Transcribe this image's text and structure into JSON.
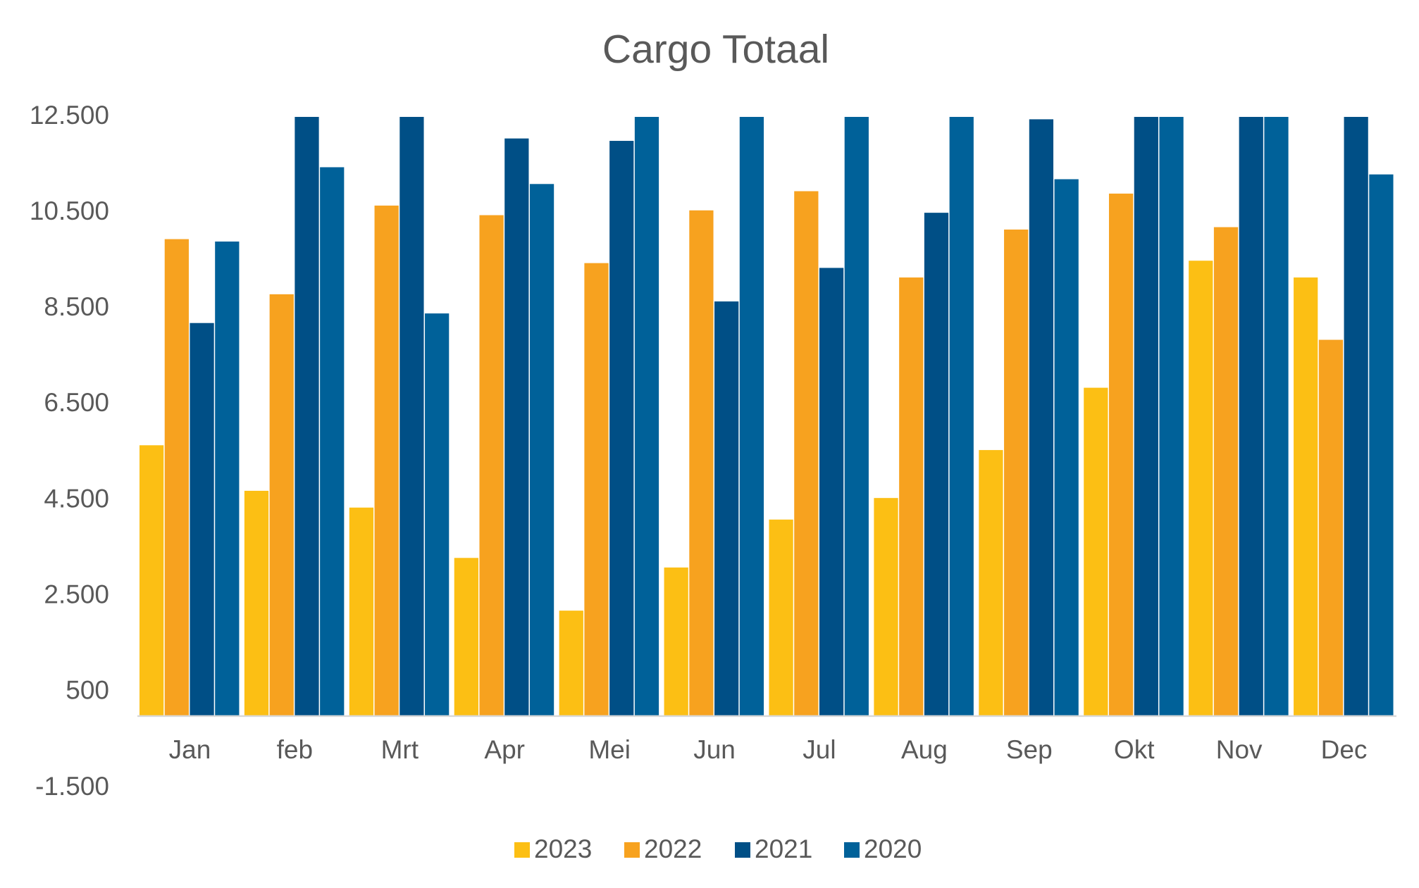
{
  "chart_data": {
    "type": "bar",
    "title": "Cargo Totaal",
    "categories": [
      "Jan",
      "feb",
      "Mrt",
      "Apr",
      "Mei",
      "Jun",
      "Jul",
      "Aug",
      "Sep",
      "Okt",
      "Nov",
      "Dec"
    ],
    "series": [
      {
        "name": "2023",
        "color": "#fcbf14",
        "values": [
          5650,
          4700,
          4350,
          3300,
          2200,
          3100,
          4100,
          4550,
          5550,
          6850,
          9500,
          9150
        ]
      },
      {
        "name": "2022",
        "color": "#f7a21f",
        "values": [
          9950,
          8800,
          10650,
          10450,
          9450,
          10550,
          10950,
          9150,
          10150,
          10900,
          10200,
          7850
        ]
      },
      {
        "name": "2021",
        "color": "#004f86",
        "values": [
          8200,
          12500,
          12500,
          12050,
          12000,
          8650,
          9350,
          10500,
          12450,
          12500,
          12500,
          12500
        ]
      },
      {
        "name": "2020",
        "color": "#006199",
        "values": [
          9900,
          11450,
          8400,
          11100,
          12500,
          12500,
          12500,
          12500,
          11200,
          12500,
          12500,
          11300
        ]
      }
    ],
    "ylim": [
      -1500,
      12500
    ],
    "yticks": [
      {
        "value": -1500,
        "label": "-1.500"
      },
      500,
      {
        "value": 2500,
        "label": "2.500"
      },
      {
        "value": 4500,
        "label": "4.500"
      },
      {
        "value": 6500,
        "label": "6.500"
      },
      {
        "value": 8500,
        "label": "8.500"
      },
      {
        "value": 10500,
        "label": "10.500"
      },
      {
        "value": 12500,
        "label": "12.500"
      }
    ],
    "grid": false,
    "legend": "bottom"
  }
}
